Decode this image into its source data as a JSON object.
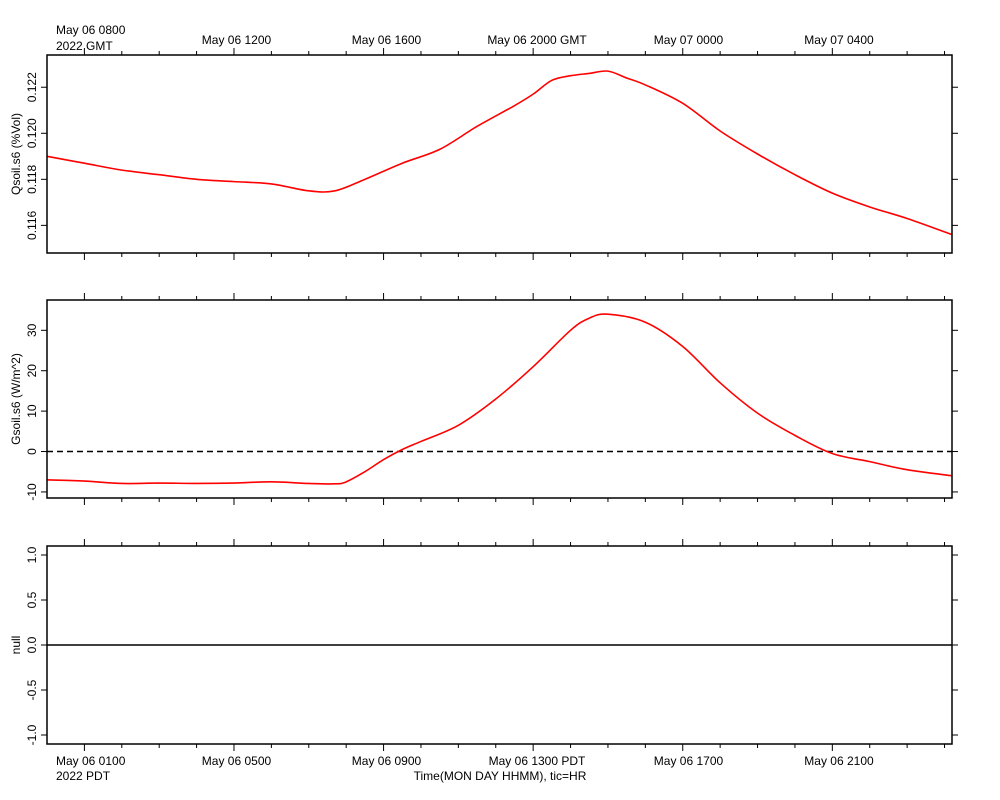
{
  "header": {
    "top_left_line1": "May 06 0800",
    "top_left_line2": "2022 GMT",
    "bottom_left_line1": "May 06 0100",
    "bottom_left_line2": "2022 PDT",
    "xaxis_title": "Time(MON DAY HHMM), tic=HR"
  },
  "top_time_labels": [
    "May 06 1200",
    "May 06 1600",
    "May 06 2000 GMT",
    "May 07 0000",
    "May 07 0400"
  ],
  "bottom_time_labels": [
    "May 06 0500",
    "May 06 0900",
    "May 06 1300 PDT",
    "May 06 1700",
    "May 06 2100"
  ],
  "colors": {
    "series": "#ff0000",
    "axes": "#000000",
    "reference": "#000000"
  },
  "chart_data": [
    {
      "type": "line",
      "ylabel": "Qsoil.s6 (%Vol)",
      "x_unit": "hours since May 06 0100 PDT (May 06 0800 GMT)",
      "xlim": [
        -1,
        23.2
      ],
      "ylim": [
        0.1148,
        0.1234
      ],
      "yticks": [
        "0.116",
        "0.118",
        "0.120",
        "0.122"
      ],
      "ytick_values": [
        0.116,
        0.118,
        0.12,
        0.122
      ],
      "series": [
        {
          "color": "#ff0000",
          "x": [
            -1,
            0,
            1,
            2,
            3,
            4,
            5,
            6,
            6.7,
            7.5,
            8.5,
            9.5,
            10.5,
            11.5,
            12,
            12.5,
            13,
            13.5,
            14,
            14.5,
            15,
            16,
            17,
            18,
            19,
            20,
            21,
            22,
            23.2
          ],
          "y": [
            0.119,
            0.1187,
            0.1184,
            0.1182,
            0.118,
            0.1179,
            0.1178,
            0.1175,
            0.1175,
            0.118,
            0.1187,
            0.1193,
            0.1203,
            0.1212,
            0.1217,
            0.1223,
            0.1225,
            0.1226,
            0.1227,
            0.1224,
            0.1221,
            0.1213,
            0.1201,
            0.1191,
            0.1182,
            0.1174,
            0.1168,
            0.1163,
            0.1156
          ]
        }
      ]
    },
    {
      "type": "line",
      "ylabel": "Gsoil.s6 (W/m^2)",
      "x_unit": "hours since May 06 0100 PDT (May 06 0800 GMT)",
      "xlim": [
        -1,
        23.2
      ],
      "ylim": [
        -11.5,
        37.5
      ],
      "yticks": [
        "-10",
        "0",
        "10",
        "20",
        "30"
      ],
      "ytick_values": [
        -10,
        0,
        10,
        20,
        30
      ],
      "reference_line": {
        "y": 0,
        "style": "dashed"
      },
      "series": [
        {
          "color": "#ff0000",
          "x": [
            -1,
            0,
            1,
            2,
            3,
            4,
            5,
            6,
            6.7,
            7,
            7.5,
            8,
            8.5,
            9,
            10,
            11,
            12,
            13,
            13.5,
            14,
            15,
            16,
            17,
            18,
            19,
            20,
            21,
            22,
            23.2
          ],
          "y": [
            -7,
            -7.3,
            -7.9,
            -7.8,
            -7.9,
            -7.8,
            -7.5,
            -7.9,
            -8,
            -7.5,
            -5,
            -2,
            0.5,
            2.5,
            6.5,
            13,
            21,
            30,
            33,
            34,
            32,
            26,
            17,
            9.5,
            4,
            -0.5,
            -2.5,
            -4.5,
            -6
          ]
        }
      ]
    },
    {
      "type": "line",
      "ylabel": "null",
      "x_unit": "hours since May 06 0100 PDT (May 06 0800 GMT)",
      "xlim": [
        -1,
        23.2
      ],
      "ylim": [
        -1.1,
        1.1
      ],
      "yticks": [
        "-1.0",
        "-0.5",
        "0.0",
        "0.5",
        "1.0"
      ],
      "ytick_values": [
        -1,
        -0.5,
        0,
        0.5,
        1
      ],
      "reference_line": {
        "y": 0,
        "style": "solid"
      },
      "series": []
    }
  ]
}
